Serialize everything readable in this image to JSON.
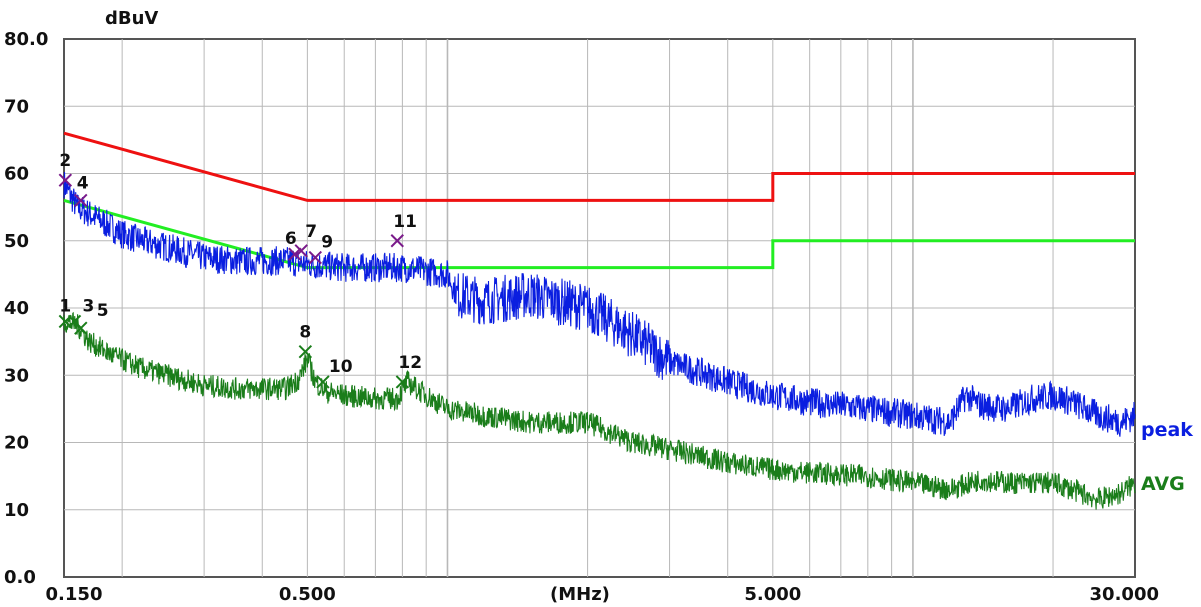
{
  "chart_data": {
    "type": "line",
    "title": "",
    "ylabel": "dBuV",
    "xlabel": "(MHz)",
    "x_scale": "log",
    "xlim": [
      0.15,
      30.0
    ],
    "ylim": [
      0.0,
      80.0
    ],
    "grid": true,
    "y_ticks": [
      {
        "value": 80,
        "label": "80.0"
      },
      {
        "value": 70,
        "label": "70"
      },
      {
        "value": 60,
        "label": "60"
      },
      {
        "value": 50,
        "label": "50"
      },
      {
        "value": 40,
        "label": "40"
      },
      {
        "value": 30,
        "label": "30"
      },
      {
        "value": 20,
        "label": "20"
      },
      {
        "value": 10,
        "label": "10"
      },
      {
        "value": 0,
        "label": "0.0"
      }
    ],
    "x_ticks": [
      {
        "value": 0.15,
        "label": "0.150"
      },
      {
        "value": 0.5,
        "label": "0.500"
      },
      {
        "value": 5.0,
        "label": "5.000"
      },
      {
        "value": 30.0,
        "label": "30.000"
      }
    ],
    "limit_lines": [
      {
        "id": "qp_limit",
        "color": "#ee1111",
        "points": [
          [
            0.15,
            66
          ],
          [
            0.5,
            56
          ],
          [
            5.0,
            56
          ],
          [
            5.0,
            60
          ],
          [
            30.0,
            60
          ]
        ]
      },
      {
        "id": "avg_limit",
        "color": "#22ee22",
        "points": [
          [
            0.15,
            56
          ],
          [
            0.5,
            46
          ],
          [
            5.0,
            46
          ],
          [
            5.0,
            50
          ],
          [
            30.0,
            50
          ]
        ]
      }
    ],
    "series": [
      {
        "name": "peak",
        "color": "#0a1ee0",
        "points": [
          [
            0.15,
            58.5
          ],
          [
            0.16,
            55
          ],
          [
            0.17,
            54
          ],
          [
            0.19,
            52
          ],
          [
            0.2,
            51
          ],
          [
            0.22,
            50
          ],
          [
            0.25,
            49
          ],
          [
            0.3,
            47.5
          ],
          [
            0.35,
            47
          ],
          [
            0.4,
            47
          ],
          [
            0.45,
            47
          ],
          [
            0.5,
            46.5
          ],
          [
            0.6,
            46
          ],
          [
            0.7,
            46
          ],
          [
            0.8,
            46
          ],
          [
            0.9,
            45.5
          ],
          [
            1.0,
            45
          ],
          [
            1.05,
            42
          ],
          [
            1.2,
            41
          ],
          [
            1.5,
            42
          ],
          [
            2.0,
            40
          ],
          [
            2.5,
            36
          ],
          [
            3.0,
            32
          ],
          [
            4.0,
            29
          ],
          [
            5.0,
            27
          ],
          [
            6.0,
            26
          ],
          [
            8.0,
            25
          ],
          [
            10.0,
            24
          ],
          [
            12.0,
            23
          ],
          [
            13.0,
            27
          ],
          [
            14.0,
            25.5
          ],
          [
            16.0,
            25
          ],
          [
            18.0,
            26.5
          ],
          [
            20.0,
            27
          ],
          [
            22.0,
            26
          ],
          [
            25.0,
            24
          ],
          [
            28.0,
            23
          ],
          [
            30.0,
            24
          ]
        ]
      },
      {
        "name": "AVG",
        "color": "#1a7d1a",
        "points": [
          [
            0.15,
            38
          ],
          [
            0.16,
            37.5
          ],
          [
            0.17,
            35
          ],
          [
            0.19,
            33
          ],
          [
            0.22,
            31
          ],
          [
            0.25,
            30
          ],
          [
            0.3,
            28.5
          ],
          [
            0.35,
            28
          ],
          [
            0.4,
            28
          ],
          [
            0.45,
            28
          ],
          [
            0.48,
            29.5
          ],
          [
            0.5,
            32.5
          ],
          [
            0.52,
            29
          ],
          [
            0.55,
            27.5
          ],
          [
            0.6,
            27
          ],
          [
            0.7,
            26.5
          ],
          [
            0.78,
            26.5
          ],
          [
            0.82,
            29
          ],
          [
            0.9,
            27
          ],
          [
            1.0,
            25
          ],
          [
            1.2,
            24
          ],
          [
            1.5,
            23
          ],
          [
            2.0,
            23
          ],
          [
            2.5,
            20
          ],
          [
            3.0,
            19
          ],
          [
            4.0,
            17
          ],
          [
            5.0,
            16
          ],
          [
            6.0,
            15.5
          ],
          [
            8.0,
            15
          ],
          [
            10.0,
            14
          ],
          [
            12.0,
            13
          ],
          [
            14.0,
            14.5
          ],
          [
            16.0,
            14
          ],
          [
            20.0,
            14
          ],
          [
            22.0,
            13
          ],
          [
            25.0,
            11.5
          ],
          [
            28.0,
            12.5
          ],
          [
            30.0,
            14
          ]
        ]
      }
    ],
    "series_labels": [
      "peak",
      "AVG"
    ],
    "markers": [
      {
        "id": "2",
        "x": 0.151,
        "y": 59.0,
        "color": "#7a1a8a"
      },
      {
        "id": "4",
        "x": 0.163,
        "y": 56.0,
        "color": "#7a1a8a"
      },
      {
        "id": "6",
        "x": 0.47,
        "y": 48.0,
        "color": "#7a1a8a"
      },
      {
        "id": "7",
        "x": 0.485,
        "y": 48.5,
        "color": "#7a1a8a"
      },
      {
        "id": "9",
        "x": 0.52,
        "y": 47.5,
        "color": "#7a1a8a"
      },
      {
        "id": "11",
        "x": 0.78,
        "y": 50.0,
        "color": "#7a1a8a"
      },
      {
        "id": "1",
        "x": 0.151,
        "y": 38.0,
        "color": "#1a7d1a"
      },
      {
        "id": "3",
        "x": 0.158,
        "y": 38.0,
        "color": "#1a7d1a"
      },
      {
        "id": "5",
        "x": 0.163,
        "y": 37.0,
        "color": "#1a7d1a"
      },
      {
        "id": "8",
        "x": 0.495,
        "y": 33.5,
        "color": "#1a7d1a"
      },
      {
        "id": "10",
        "x": 0.54,
        "y": 29.0,
        "color": "#1a7d1a"
      },
      {
        "id": "12",
        "x": 0.8,
        "y": 29.0,
        "color": "#1a7d1a"
      }
    ]
  }
}
